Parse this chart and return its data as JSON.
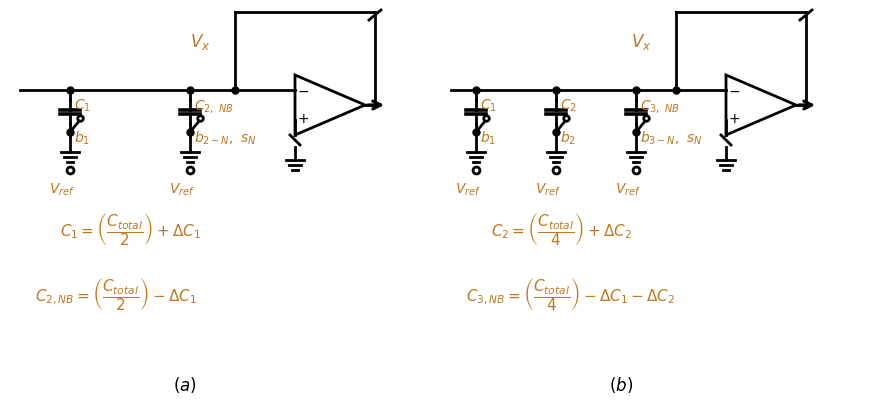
{
  "bg_color": "#ffffff",
  "circuit_color": "#000000",
  "label_color": "#c07820",
  "eq_color": "#c07820",
  "fig_width": 8.73,
  "fig_height": 4.13
}
